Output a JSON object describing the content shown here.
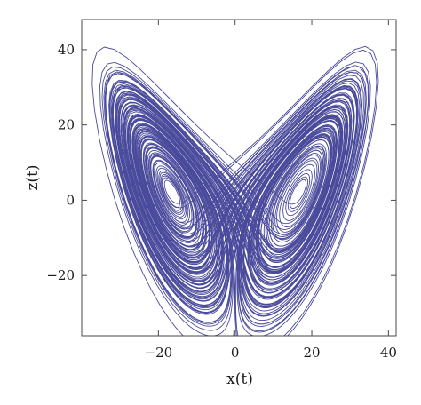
{
  "chart_data": {
    "type": "line",
    "title": "",
    "xlabel": "x(t)",
    "ylabel": "z(t)",
    "xlim": [
      -40,
      42
    ],
    "ylim": [
      -36,
      48
    ],
    "x_ticks": [
      -20,
      0,
      20,
      40
    ],
    "y_ticks": [
      -20,
      0,
      20,
      40
    ],
    "x_tick_labels": [
      "−20",
      "0",
      "20",
      "40"
    ],
    "y_tick_labels": [
      "−20",
      "0",
      "20",
      "40"
    ],
    "grid": false,
    "legend": "none",
    "line_color": "#4a4a9c",
    "frame_color": "#4a4a4a",
    "series": [
      {
        "sampled_from": "chaotic butterfly-shaped phase trajectory (x(t), z(t))",
        "x": [
          0,
          -8,
          -16,
          -22,
          -27,
          -31,
          -34,
          -36,
          -37,
          -36,
          -32,
          -26,
          -18,
          -10,
          -4,
          -1,
          0,
          -2,
          -6,
          -12,
          -18,
          -24,
          -29,
          -33,
          -35,
          -34,
          -30,
          -24,
          -16,
          -9,
          -3,
          0,
          6,
          14,
          22,
          28,
          33,
          36,
          38,
          37,
          33,
          27,
          19,
          11,
          5,
          1,
          0,
          3,
          9,
          16,
          23,
          29,
          33,
          35,
          33,
          28,
          21,
          13,
          6,
          1
        ],
        "z": [
          -30,
          -28,
          -23,
          -15,
          -5,
          6,
          16,
          26,
          35,
          41,
          42,
          36,
          26,
          17,
          10,
          6,
          3,
          -5,
          -13,
          -19,
          -20,
          -14,
          -4,
          8,
          20,
          31,
          37,
          33,
          24,
          15,
          8,
          5,
          -25,
          -24,
          -19,
          -11,
          -1,
          10,
          22,
          33,
          43,
          46,
          38,
          27,
          16,
          9,
          4,
          -6,
          -14,
          -19,
          -19,
          -12,
          0,
          14,
          27,
          37,
          35,
          25,
          14,
          6
        ]
      }
    ]
  }
}
